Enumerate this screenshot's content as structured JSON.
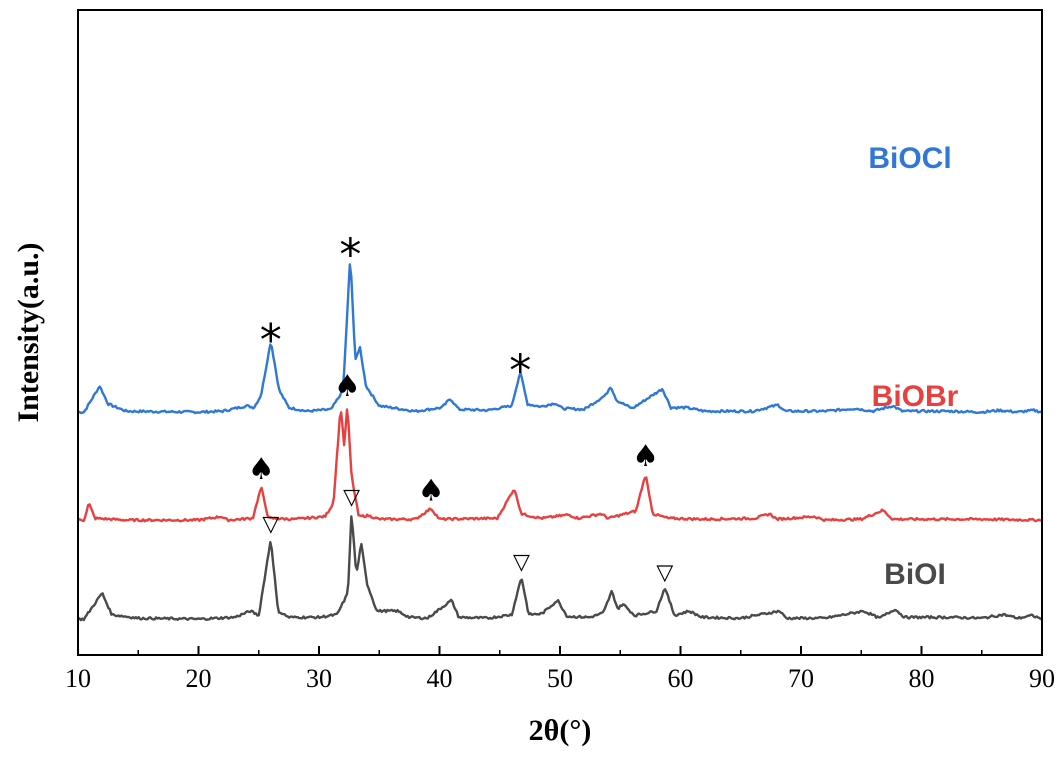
{
  "chart_data": {
    "type": "line",
    "title": "",
    "xlabel": "2θ(°)",
    "ylabel": "Intensity(a.u.)",
    "xlim": [
      10,
      90
    ],
    "xticks": [
      10,
      20,
      30,
      40,
      50,
      60,
      70,
      80,
      90
    ],
    "grid": false,
    "legend": "inline-right",
    "series": [
      {
        "name": "BiOCl",
        "color": "#2f78d6",
        "offset": 2.3,
        "baseline": 0.03,
        "points": [
          [
            10.5,
            0.01
          ],
          [
            11.8,
            0.3
          ],
          [
            12.5,
            0.1
          ],
          [
            14,
            0.02
          ],
          [
            20,
            0.01
          ],
          [
            22,
            0.02
          ],
          [
            24,
            0.08
          ],
          [
            24.6,
            0.06
          ],
          [
            25.2,
            0.2
          ],
          [
            26.0,
            0.8
          ],
          [
            26.7,
            0.25
          ],
          [
            27.5,
            0.06
          ],
          [
            29,
            0.02
          ],
          [
            31,
            0.04
          ],
          [
            32.0,
            0.25
          ],
          [
            32.6,
            1.75
          ],
          [
            33.0,
            0.6
          ],
          [
            33.4,
            0.72
          ],
          [
            33.9,
            0.3
          ],
          [
            35,
            0.08
          ],
          [
            36.5,
            0.05
          ],
          [
            38,
            0.02
          ],
          [
            40.2,
            0.06
          ],
          [
            40.9,
            0.16
          ],
          [
            41.6,
            0.04
          ],
          [
            44,
            0.03
          ],
          [
            46.0,
            0.08
          ],
          [
            46.7,
            0.46
          ],
          [
            47.3,
            0.1
          ],
          [
            48.4,
            0.07
          ],
          [
            49.6,
            0.11
          ],
          [
            50.2,
            0.05
          ],
          [
            52,
            0.04
          ],
          [
            53.8,
            0.2
          ],
          [
            54.2,
            0.3
          ],
          [
            54.7,
            0.14
          ],
          [
            56,
            0.05
          ],
          [
            58.5,
            0.27
          ],
          [
            59.2,
            0.06
          ],
          [
            60.5,
            0.06
          ],
          [
            62,
            0.02
          ],
          [
            66,
            0.02
          ],
          [
            68.1,
            0.09
          ],
          [
            68.7,
            0.02
          ],
          [
            72,
            0.02
          ],
          [
            74.5,
            0.05
          ],
          [
            76,
            0.02
          ],
          [
            77.6,
            0.08
          ],
          [
            78.4,
            0.02
          ],
          [
            82.6,
            0.02
          ],
          [
            85,
            0.01
          ],
          [
            86.5,
            0.03
          ],
          [
            88,
            0.01
          ],
          [
            89.3,
            0.03
          ],
          [
            90,
            0.01
          ]
        ]
      },
      {
        "name": "BiOBr",
        "color": "#e8403f",
        "offset": 1.1,
        "baseline": 0.03,
        "points": [
          [
            10.5,
            0.01
          ],
          [
            10.9,
            0.2
          ],
          [
            11.4,
            0.03
          ],
          [
            14,
            0.01
          ],
          [
            20,
            0.01
          ],
          [
            21.9,
            0.05
          ],
          [
            22.4,
            0.01
          ],
          [
            24.5,
            0.03
          ],
          [
            25.2,
            0.38
          ],
          [
            25.8,
            0.03
          ],
          [
            28,
            0.02
          ],
          [
            30.5,
            0.05
          ],
          [
            31.2,
            0.2
          ],
          [
            31.8,
            1.28
          ],
          [
            32.1,
            0.82
          ],
          [
            32.35,
            1.3
          ],
          [
            32.7,
            0.5
          ],
          [
            33.3,
            0.05
          ],
          [
            34.1,
            0.06
          ],
          [
            35,
            0.02
          ],
          [
            38,
            0.02
          ],
          [
            39.3,
            0.14
          ],
          [
            40,
            0.02
          ],
          [
            44.8,
            0.03
          ],
          [
            46.2,
            0.36
          ],
          [
            46.8,
            0.08
          ],
          [
            47.4,
            0.06
          ],
          [
            48.5,
            0.03
          ],
          [
            50.7,
            0.07
          ],
          [
            51.5,
            0.03
          ],
          [
            53.4,
            0.08
          ],
          [
            54,
            0.03
          ],
          [
            56.3,
            0.11
          ],
          [
            57.1,
            0.52
          ],
          [
            57.7,
            0.08
          ],
          [
            59,
            0.03
          ],
          [
            62,
            0.02
          ],
          [
            66.2,
            0.03
          ],
          [
            67.4,
            0.08
          ],
          [
            68,
            0.02
          ],
          [
            71.1,
            0.05
          ],
          [
            72,
            0.01
          ],
          [
            75,
            0.02
          ],
          [
            76.8,
            0.12
          ],
          [
            77.6,
            0.02
          ],
          [
            80.9,
            0.02
          ],
          [
            85,
            0.02
          ],
          [
            90,
            0.01
          ]
        ]
      },
      {
        "name": "BiOI",
        "color": "#4a4a4a",
        "offset": 0.0,
        "baseline": 0.03,
        "points": [
          [
            10.5,
            0.01
          ],
          [
            12.0,
            0.3
          ],
          [
            12.8,
            0.06
          ],
          [
            15,
            0.02
          ],
          [
            20,
            0.01
          ],
          [
            23,
            0.03
          ],
          [
            24.3,
            0.1
          ],
          [
            25.0,
            0.05
          ],
          [
            26.0,
            0.9
          ],
          [
            26.6,
            0.1
          ],
          [
            27.5,
            0.03
          ],
          [
            30,
            0.03
          ],
          [
            31.5,
            0.06
          ],
          [
            32.4,
            0.3
          ],
          [
            32.7,
            1.2
          ],
          [
            33.1,
            0.5
          ],
          [
            33.5,
            0.85
          ],
          [
            34.0,
            0.4
          ],
          [
            34.8,
            0.1
          ],
          [
            36.5,
            0.1
          ],
          [
            37.5,
            0.03
          ],
          [
            39,
            0.02
          ],
          [
            41.0,
            0.22
          ],
          [
            41.6,
            0.03
          ],
          [
            44,
            0.02
          ],
          [
            46.0,
            0.06
          ],
          [
            46.8,
            0.48
          ],
          [
            47.4,
            0.06
          ],
          [
            48.5,
            0.07
          ],
          [
            49.8,
            0.22
          ],
          [
            50.6,
            0.04
          ],
          [
            52.5,
            0.03
          ],
          [
            53.6,
            0.08
          ],
          [
            54.3,
            0.32
          ],
          [
            54.8,
            0.12
          ],
          [
            55.2,
            0.18
          ],
          [
            56.2,
            0.05
          ],
          [
            58.0,
            0.1
          ],
          [
            58.7,
            0.36
          ],
          [
            59.5,
            0.05
          ],
          [
            60.7,
            0.1
          ],
          [
            61.8,
            0.03
          ],
          [
            65,
            0.02
          ],
          [
            68.2,
            0.1
          ],
          [
            68.8,
            0.02
          ],
          [
            72,
            0.02
          ],
          [
            75.2,
            0.1
          ],
          [
            76.5,
            0.02
          ],
          [
            77.8,
            0.12
          ],
          [
            78.6,
            0.03
          ],
          [
            82.6,
            0.03
          ],
          [
            85,
            0.02
          ],
          [
            86.8,
            0.06
          ],
          [
            88,
            0.02
          ],
          [
            89.2,
            0.05
          ],
          [
            90,
            0.01
          ]
        ]
      }
    ],
    "markers": [
      {
        "series": "BiOCl",
        "symbol": "*",
        "x": [
          26.0,
          32.6,
          46.7
        ]
      },
      {
        "series": "BiOBr",
        "symbol": "♠",
        "x": [
          25.2,
          32.35,
          39.3,
          57.1
        ]
      },
      {
        "series": "BiOI",
        "symbol": "▽",
        "x": [
          26.0,
          32.7,
          46.8,
          58.7
        ]
      }
    ]
  }
}
